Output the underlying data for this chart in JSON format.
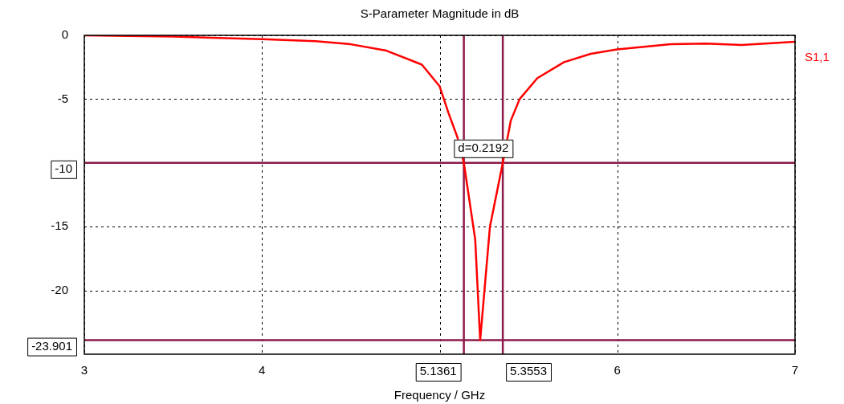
{
  "chart_data": {
    "type": "line",
    "title": "S-Parameter Magnitude in dB",
    "xlabel": "Frequency / GHz",
    "series": [
      {
        "name": "S1,1",
        "color": "#ff0000",
        "x": [
          3.0,
          3.5,
          4.0,
          4.3,
          4.5,
          4.7,
          4.9,
          5.0,
          5.05,
          5.1,
          5.1361,
          5.2,
          5.228,
          5.283,
          5.3553,
          5.4,
          5.45,
          5.55,
          5.7,
          5.85,
          6.0,
          6.3,
          6.5,
          6.7,
          7.0
        ],
        "values": [
          0,
          -0.1,
          -0.3,
          -0.45,
          -0.7,
          -1.2,
          -2.3,
          -4.0,
          -6.1,
          -8.0,
          -10,
          -16,
          -23.9,
          -15,
          -10,
          -6.7,
          -5,
          -3.35,
          -2.1,
          -1.45,
          -1.1,
          -0.7,
          -0.65,
          -0.75,
          -0.5
        ]
      }
    ],
    "xlim": [
      3,
      7
    ],
    "xticks": [
      3,
      4,
      {
        "value": 5,
        "label": null
      },
      6,
      7
    ],
    "ylim": [
      -25,
      0
    ],
    "yticks": [
      0,
      -5,
      {
        "value": -10,
        "label": null
      },
      -15,
      -20
    ],
    "grid": true,
    "legend": false,
    "marker": "none",
    "line_style": "solid",
    "ref_lines": [
      {
        "axis": "y",
        "value": -10,
        "label": "-10",
        "color": "#8b1a4a"
      },
      {
        "axis": "y",
        "value": -23.901,
        "label": "-23.901",
        "color": "#8b1a4a"
      },
      {
        "axis": "x",
        "value": 5.1361,
        "label": "5.1361",
        "color": "#8b1a4a"
      },
      {
        "axis": "x",
        "value": 5.3553,
        "label": "5.3553",
        "color": "#8b1a4a"
      }
    ],
    "annotations": [
      "d=0.2192"
    ]
  }
}
